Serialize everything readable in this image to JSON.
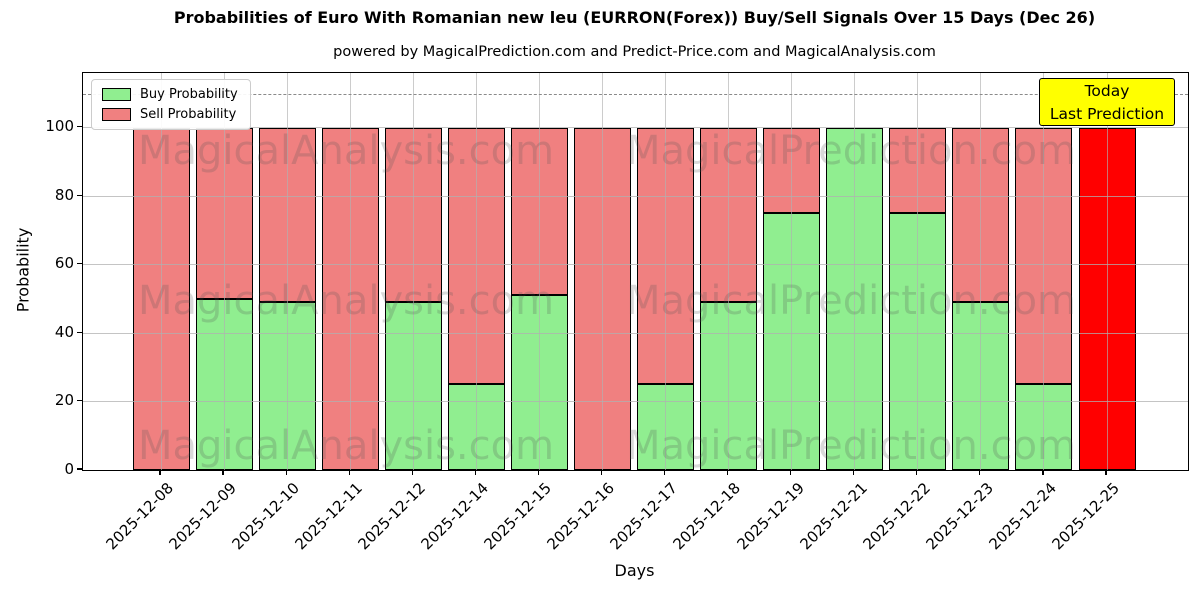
{
  "title": "Probabilities of Euro With Romanian new leu (EURRON(Forex)) Buy/Sell Signals Over 15 Days (Dec 26)",
  "subtitle": "powered by MagicalPrediction.com and Predict-Price.com and MagicalAnalysis.com",
  "legend": {
    "items": [
      {
        "label": "Buy Probability",
        "color": "#90ee90"
      },
      {
        "label": "Sell Probability",
        "color": "#f08080"
      }
    ]
  },
  "annotation": {
    "line1": "Today",
    "line2": "Last Prediction",
    "bg": "#ffff00"
  },
  "watermarks": {
    "left": "MagicalAnalysis.com",
    "right": "MagicalPrediction.com"
  },
  "axes": {
    "xlabel": "Days",
    "ylabel": "Probability",
    "yticks": [
      0,
      20,
      40,
      60,
      80,
      100
    ],
    "ymax": 116,
    "dashed_line_y": 110,
    "grid": true
  },
  "colors": {
    "buy": "#90ee90",
    "sell": "#f08080",
    "today": "#ff0000",
    "bar_edge": "#000000",
    "grid": "#b0b0b0",
    "annotation_bg": "#ffff00"
  },
  "chart_data": {
    "type": "bar",
    "stacked": true,
    "title": "Probabilities of Euro With Romanian new leu (EURRON(Forex)) Buy/Sell Signals Over 15 Days (Dec 26)",
    "xlabel": "Days",
    "ylabel": "Probability",
    "ylim": [
      0,
      116
    ],
    "grid": true,
    "legend_position": "upper left",
    "categories": [
      "2025-12-08",
      "2025-12-09",
      "2025-12-10",
      "2025-12-11",
      "2025-12-12",
      "2025-12-14",
      "2025-12-15",
      "2025-12-16",
      "2025-12-17",
      "2025-12-18",
      "2025-12-19",
      "2025-12-21",
      "2025-12-22",
      "2025-12-23",
      "2025-12-24",
      "2025-12-25"
    ],
    "series": [
      {
        "name": "Buy Probability",
        "color": "#90ee90",
        "values": [
          0,
          50,
          49,
          0,
          49,
          25,
          51,
          0,
          25,
          49,
          75,
          100,
          75,
          49,
          25,
          0
        ]
      },
      {
        "name": "Sell Probability",
        "color": "#f08080",
        "values": [
          100,
          50,
          51,
          100,
          51,
          75,
          49,
          100,
          75,
          51,
          25,
          0,
          25,
          51,
          75,
          100
        ]
      }
    ],
    "today_bar": {
      "index": 15,
      "category": "2025-12-25",
      "color": "#ff0000",
      "label": "Today / Last Prediction"
    }
  }
}
